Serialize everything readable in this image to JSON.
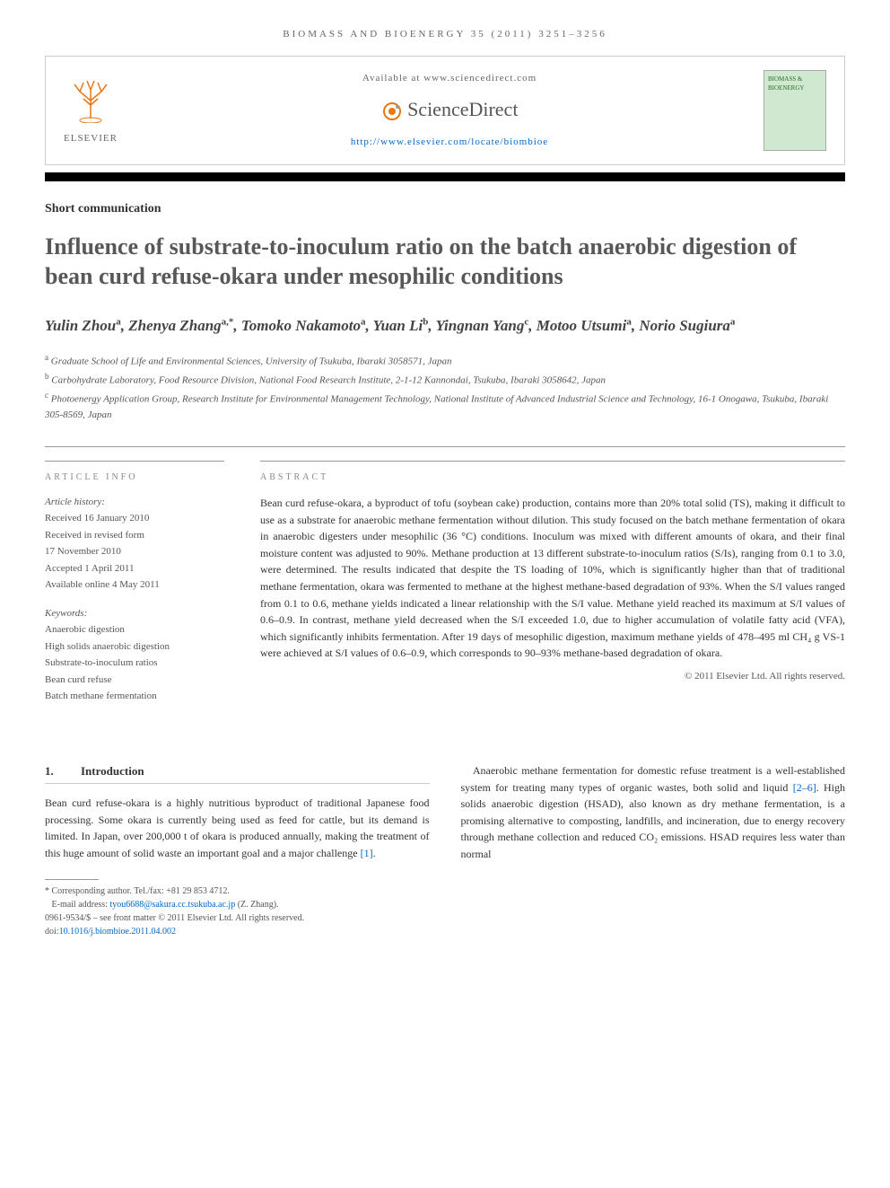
{
  "journal_header": "BIOMASS AND BIOENERGY 35 (2011) 3251–3256",
  "header": {
    "available": "Available at www.sciencedirect.com",
    "sd_brand": "ScienceDirect",
    "url": "http://www.elsevier.com/locate/biombioe",
    "elsevier": "ELSEVIER",
    "cover_title": "BIOMASS & BIOENERGY"
  },
  "article_type": "Short communication",
  "title": "Influence of substrate-to-inoculum ratio on the batch anaerobic digestion of bean curd refuse-okara under mesophilic conditions",
  "authors_html": "Yulin Zhou<sup>a</sup>, Zhenya Zhang<sup>a,*</sup>, Tomoko Nakamoto<sup>a</sup>, Yuan Li<sup>b</sup>, Yingnan Yang<sup>c</sup>, Motoo Utsumi<sup>a</sup>, Norio Sugiura<sup>a</sup>",
  "affiliations": [
    {
      "sup": "a",
      "text": "Graduate School of Life and Environmental Sciences, University of Tsukuba, Ibaraki 3058571, Japan"
    },
    {
      "sup": "b",
      "text": "Carbohydrate Laboratory, Food Resource Division, National Food Research Institute, 2-1-12 Kannondai, Tsukuba, Ibaraki 3058642, Japan"
    },
    {
      "sup": "c",
      "text": "Photoenergy Application Group, Research Institute for Environmental Management Technology, National Institute of Advanced Industrial Science and Technology, 16-1 Onogawa, Tsukuba, Ibaraki 305-8569, Japan"
    }
  ],
  "info": {
    "heading": "ARTICLE INFO",
    "history_label": "Article history:",
    "history": [
      "Received 16 January 2010",
      "Received in revised form",
      "17 November 2010",
      "Accepted 1 April 2011",
      "Available online 4 May 2011"
    ],
    "keywords_label": "Keywords:",
    "keywords": [
      "Anaerobic digestion",
      "High solids anaerobic digestion",
      "Substrate-to-inoculum ratios",
      "Bean curd refuse",
      "Batch methane fermentation"
    ]
  },
  "abstract": {
    "heading": "ABSTRACT",
    "text": "Bean curd refuse-okara, a byproduct of tofu (soybean cake) production, contains more than 20% total solid (TS), making it difficult to use as a substrate for anaerobic methane fermentation without dilution. This study focused on the batch methane fermentation of okara in anaerobic digesters under mesophilic (36 °C) conditions. Inoculum was mixed with different amounts of okara, and their final moisture content was adjusted to 90%. Methane production at 13 different substrate-to-inoculum ratios (S/Is), ranging from 0.1 to 3.0, were determined. The results indicated that despite the TS loading of 10%, which is significantly higher than that of traditional methane fermentation, okara was fermented to methane at the highest methane-based degradation of 93%. When the S/I values ranged from 0.1 to 0.6, methane yields indicated a linear relationship with the S/I value. Methane yield reached its maximum at S/I values of 0.6–0.9. In contrast, methane yield decreased when the S/I exceeded 1.0, due to higher accumulation of volatile fatty acid (VFA), which significantly inhibits fermentation. After 19 days of mesophilic digestion, maximum methane yields of 478–495 ml CH₄ g VS-1 were achieved at S/I values of 0.6–0.9, which corresponds to 90–93% methane-based degradation of okara.",
    "copyright": "© 2011 Elsevier Ltd. All rights reserved."
  },
  "section1": {
    "num": "1.",
    "title": "Introduction",
    "para_left": "Bean curd refuse-okara is a highly nutritious byproduct of traditional Japanese food processing. Some okara is currently being used as feed for cattle, but its demand is limited. In Japan, over 200,000 t of okara is produced annually, making the treatment of this huge amount of solid waste an important goal and a major challenge ",
    "ref1": "[1]",
    "para_left_end": ".",
    "para_right_1": "Anaerobic methane fermentation for domestic refuse treatment is a well-established system for treating many types of organic wastes, both solid and liquid ",
    "ref2": "[2–6]",
    "para_right_2": ". High solids anaerobic digestion (HSAD), also known as dry methane fermentation, is a promising alternative to composting, landfills, and incineration, due to energy recovery through methane collection and reduced CO₂ emissions. HSAD requires less water than normal"
  },
  "footnotes": {
    "corr": "* Corresponding author. Tel./fax: +81 29 853 4712.",
    "email_label": "E-mail address: ",
    "email": "tyou6688@sakura.cc.tsukuba.ac.jp",
    "email_name": " (Z. Zhang).",
    "issn": "0961-9534/$ – see front matter © 2011 Elsevier Ltd. All rights reserved.",
    "doi_label": "doi:",
    "doi": "10.1016/j.biombioe.2011.04.002"
  }
}
